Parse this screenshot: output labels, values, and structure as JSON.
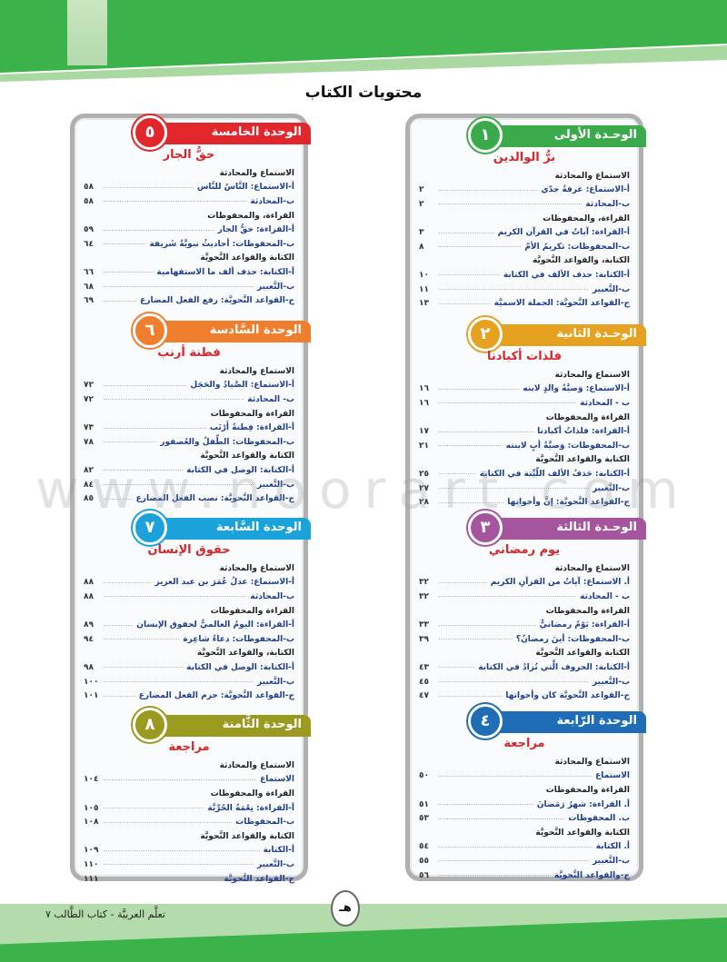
{
  "page_title": "محتويات الكتاب",
  "footer": {
    "book": "تعلَّم العربيَّة - كتاب الطَّالب ٧",
    "page": "هـ"
  },
  "watermark": "www.noorart.com",
  "columns": [
    {
      "units": [
        {
          "label": "الوحـدة الأولى",
          "num": "١",
          "color": "#3aaa4a",
          "title": "برُّ الوالدين",
          "rows": [
            {
              "t": "الاستماع والمحادثة"
            },
            {
              "t": "أ-الاستماع: غرفةُ جدّي",
              "p": "٢"
            },
            {
              "t": "ب-المحادثة",
              "p": "٢"
            },
            {
              "t": "القراءة، والمحفوظات"
            },
            {
              "t": "أ-القراءة: آياتٌ في القرآن الكريم",
              "p": "٣"
            },
            {
              "t": "ب-المحفوظات: تكريمُ الأمّ",
              "p": "٨"
            },
            {
              "t": "الكتابة، والقواعد النَّحويَّة"
            },
            {
              "t": "أ-الكتابة: حذف الألف في الكتابة",
              "p": "١٠"
            },
            {
              "t": "ب-التَّعبير",
              "p": "١١"
            },
            {
              "t": "ج-القواعد النَّحويَّة: الجملة الاسميَّة",
              "p": "١٣"
            }
          ]
        },
        {
          "label": "الوحـدة الثانية",
          "num": "٢",
          "color": "#e5a11f",
          "title": "فلذات أكبادنا",
          "rows": [
            {
              "t": "الاستماع والمحادثة"
            },
            {
              "t": "أ-الاستماع: وَصيَّةُ والدٍ لابنه",
              "p": "١٦"
            },
            {
              "t": "ب - المحادثة",
              "p": "١٦"
            },
            {
              "t": "القراءة والمحفوظات"
            },
            {
              "t": "أ-القراءة: فلذاتُ أكبادنا",
              "p": "١٧"
            },
            {
              "t": "ب-المحفوظات: وَصيَّةُ أبٍ لابنته",
              "p": "٢١"
            },
            {
              "t": "الكتابة والقواعد النَّحويَّة"
            },
            {
              "t": "أ-الكتابة: حَذفُ الألف اللّيِّنة في الكتابة",
              "p": "٢٥"
            },
            {
              "t": "ب-التَّعبير",
              "p": "٢٧"
            },
            {
              "t": "ج-القواعد النَّحويَّة: إنَّ وأخواتها",
              "p": "٢٨"
            }
          ]
        },
        {
          "label": "الوحـدة الثالثة",
          "num": "٣",
          "color": "#a4559e",
          "title": "يوم رمضاني",
          "rows": [
            {
              "t": "الاستماع والمحادثة"
            },
            {
              "t": "أ. الاستماع: آياتٌ من القرآنِ الكريم",
              "p": "٣٢"
            },
            {
              "t": "ب - المحادثة",
              "p": "٣٢"
            },
            {
              "t": "القراءة والمحفوظات"
            },
            {
              "t": "أ-القراءة: يَوْمٌ رمضانيٌّ",
              "p": "٣٣"
            },
            {
              "t": "ب-المحفوظات: أينَ رمضانُ؟",
              "p": "٣٩"
            },
            {
              "t": "الكتابة والقواعد النَّحويَّة"
            },
            {
              "t": "أ-الكتابة: الحروف الَّتي تُزادُ في الكتابة",
              "p": "٤٣"
            },
            {
              "t": "ب-التَّعبير",
              "p": "٤٥"
            },
            {
              "t": "ج-القواعد النَّحويَّة كان وأخواتها",
              "p": "٤٧"
            }
          ]
        },
        {
          "label": "الوحدة الرّابعة",
          "num": "٤",
          "color": "#1f6db6",
          "title": "مراجعة",
          "rows": [
            {
              "t": "الاستماع والمحادثة"
            },
            {
              "t": "الاستماع",
              "p": "٥٠"
            },
            {
              "t": "القراءة والمحفوظات"
            },
            {
              "t": "أ. القراءة: شهرُ رَمَضانَ",
              "p": "٥١"
            },
            {
              "t": "ب. المحفوظات",
              "p": "٥٣"
            },
            {
              "t": "الكتابة والقواعد النَّحويَّة"
            },
            {
              "t": "أ. الكتابة",
              "p": "٥٤"
            },
            {
              "t": "ب-التَّعبير",
              "p": "٥٥"
            },
            {
              "t": "ج-والقواعد النَّحويَّة",
              "p": "٥٦"
            }
          ]
        }
      ]
    },
    {
      "units": [
        {
          "label": "الوحدة الخامسة",
          "num": "٥",
          "color": "#e1262c",
          "title": "حقُّ الجار",
          "rows": [
            {
              "t": "الاستماع والمحادثة"
            },
            {
              "t": "أ-الاستماع: النَّاسُ للنَّاس",
              "p": "٥٨"
            },
            {
              "t": "ب-المحادثة",
              "p": "٥٨"
            },
            {
              "t": "القراءة، والمحفوظات"
            },
            {
              "t": "أ-القراءة: حقُّ الجار",
              "p": "٥٩"
            },
            {
              "t": "ب-المحفوظات: أحاديثُ نبويَّةٌ شَريفة",
              "p": "٦٤"
            },
            {
              "t": "الكتابة والقواعد النَّحويَّة"
            },
            {
              "t": "أ-الكتابة: حذف ألف ما الاستفهامية",
              "p": "٦٦"
            },
            {
              "t": "ب-التَّعبير",
              "p": "٦٨"
            },
            {
              "t": "ج-القواعد النَّحويَّة: رفع الفعل المضارع",
              "p": "٦٩"
            }
          ]
        },
        {
          "label": "الوحدة السَّادسة",
          "num": "٦",
          "color": "#ef7e2e",
          "title": "فطنة أرنب",
          "rows": [
            {
              "t": "الاستماع والمحادثة"
            },
            {
              "t": "أ-الاستماع: الصَّيادُ والحَجَل",
              "p": "٧٢"
            },
            {
              "t": "ب- المحادثة",
              "p": "٧٢"
            },
            {
              "t": "القراءة والمحفوظات"
            },
            {
              "t": "أ-القراءة: فِطنةُ أَرْنَب",
              "p": "٧٣"
            },
            {
              "t": "ب-المحفوظات: الطِّفلُ والعُصفور",
              "p": "٧٨"
            },
            {
              "t": "الكتابة والقواعد النَّحويَّة"
            },
            {
              "t": "أ-الكتابة: الوصل في الكتابة",
              "p": "٨٢"
            },
            {
              "t": "ب-التَّعبير",
              "p": "٨٤"
            },
            {
              "t": "ج-القواعد النَّحويَّة: نصب الفعل المضارع",
              "p": "٨٥"
            }
          ]
        },
        {
          "label": "الوحدة السَّابعة",
          "num": "٧",
          "color": "#1ba2da",
          "title": "حقوق الإنسان",
          "rows": [
            {
              "t": "الاستماع والمحادثة"
            },
            {
              "t": "أ-الاستماع: عدلُ عُمَرَ بن عبد العزيز",
              "p": "٨٨"
            },
            {
              "t": "ب-المحادثة",
              "p": "٨٨"
            },
            {
              "t": "القراءة والمحفوظات"
            },
            {
              "t": "أ-القراءة: اليومُ العالميُّ لحقوق الإنسان",
              "p": "٨٩"
            },
            {
              "t": "ب-المحفوظات: دعاءُ شاعِرة",
              "p": "٩٤"
            },
            {
              "t": "الكتابة، والقواعد النَّحويَّة"
            },
            {
              "t": "أ-الكتابة: الوصل في الكتابة",
              "p": "٩٨"
            },
            {
              "t": "ب-التَّعبير",
              "p": "١٠٠"
            },
            {
              "t": "ج-القواعد النَّحويَّة: جزم الفعل المضارع",
              "p": "١٠١"
            }
          ]
        },
        {
          "label": "الوحدة الثَّامنة",
          "num": "٨",
          "color": "#9b9a20",
          "title": "مراجعة",
          "rows": [
            {
              "t": "الاستماع والمحادثة"
            },
            {
              "t": "الاستماع",
              "p": "١٠٤"
            },
            {
              "t": "القراءة والمحفوظات"
            },
            {
              "t": "أ-القراءة: نِعْمَةُ الحُرِّيَّة",
              "p": "١٠٥"
            },
            {
              "t": "ب-المحفوظات",
              "p": "١٠٨"
            },
            {
              "t": "الكتابة والقواعد النَّحويَّة"
            },
            {
              "t": "أ-الكتابة",
              "p": "١٠٩"
            },
            {
              "t": "ب-التَّعبير",
              "p": "١١٠"
            },
            {
              "t": "ج-القواعد النَّحويَّة",
              "p": "١١١"
            }
          ]
        }
      ]
    }
  ]
}
